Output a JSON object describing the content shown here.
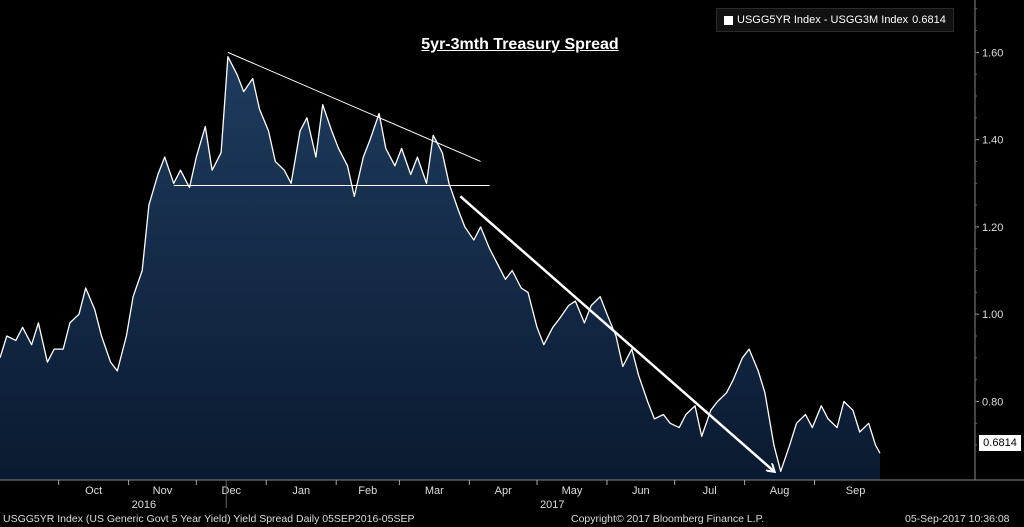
{
  "chart_data": {
    "type": "area",
    "title": "5yr-3mth Treasury Spread",
    "legend": {
      "position": "top-right",
      "series_label": "USGG5YR Index - USGG3M Index",
      "last_value": "0.6814"
    },
    "ylim": [
      0.62,
      1.72
    ],
    "yticks": [
      0.8,
      1.0,
      1.2,
      1.4,
      1.6
    ],
    "ytick_labels": [
      "0.80",
      "1.00",
      "1.20",
      "1.40",
      "1.60"
    ],
    "last_value_label": "0.6814",
    "x_start": "2016-09-05",
    "x_end": "2017-09-30",
    "month_ticks": [
      {
        "label": "Oct",
        "date": "2016-10-01"
      },
      {
        "label": "Nov",
        "date": "2016-11-01"
      },
      {
        "label": "Dec",
        "date": "2016-12-01"
      },
      {
        "label": "Jan",
        "date": "2017-01-01"
      },
      {
        "label": "Feb",
        "date": "2017-02-01"
      },
      {
        "label": "Mar",
        "date": "2017-03-01"
      },
      {
        "label": "Apr",
        "date": "2017-04-01"
      },
      {
        "label": "May",
        "date": "2017-05-01"
      },
      {
        "label": "Jun",
        "date": "2017-06-01"
      },
      {
        "label": "Jul",
        "date": "2017-07-01"
      },
      {
        "label": "Aug",
        "date": "2017-08-01"
      },
      {
        "label": "Sep",
        "date": "2017-09-01"
      }
    ],
    "year_labels": [
      {
        "label": "2016",
        "date": "2016-11-01"
      },
      {
        "label": "2017",
        "date": "2017-05-01"
      }
    ],
    "grid": false,
    "series": [
      {
        "name": "USGG5YR Index - USGG3M Index",
        "points": [
          [
            "2016-09-05",
            0.9
          ],
          [
            "2016-09-08",
            0.95
          ],
          [
            "2016-09-12",
            0.94
          ],
          [
            "2016-09-15",
            0.97
          ],
          [
            "2016-09-19",
            0.93
          ],
          [
            "2016-09-22",
            0.98
          ],
          [
            "2016-09-26",
            0.89
          ],
          [
            "2016-09-29",
            0.92
          ],
          [
            "2016-10-03",
            0.92
          ],
          [
            "2016-10-06",
            0.98
          ],
          [
            "2016-10-10",
            1.0
          ],
          [
            "2016-10-13",
            1.06
          ],
          [
            "2016-10-17",
            1.01
          ],
          [
            "2016-10-20",
            0.95
          ],
          [
            "2016-10-24",
            0.89
          ],
          [
            "2016-10-27",
            0.87
          ],
          [
            "2016-10-31",
            0.95
          ],
          [
            "2016-11-03",
            1.04
          ],
          [
            "2016-11-07",
            1.1
          ],
          [
            "2016-11-10",
            1.25
          ],
          [
            "2016-11-14",
            1.32
          ],
          [
            "2016-11-17",
            1.36
          ],
          [
            "2016-11-21",
            1.3
          ],
          [
            "2016-11-24",
            1.33
          ],
          [
            "2016-11-28",
            1.29
          ],
          [
            "2016-12-01",
            1.36
          ],
          [
            "2016-12-05",
            1.43
          ],
          [
            "2016-12-08",
            1.33
          ],
          [
            "2016-12-12",
            1.37
          ],
          [
            "2016-12-15",
            1.59
          ],
          [
            "2016-12-19",
            1.55
          ],
          [
            "2016-12-22",
            1.51
          ],
          [
            "2016-12-26",
            1.54
          ],
          [
            "2016-12-29",
            1.47
          ],
          [
            "2017-01-02",
            1.42
          ],
          [
            "2017-01-05",
            1.35
          ],
          [
            "2017-01-09",
            1.33
          ],
          [
            "2017-01-12",
            1.3
          ],
          [
            "2017-01-16",
            1.42
          ],
          [
            "2017-01-19",
            1.45
          ],
          [
            "2017-01-23",
            1.36
          ],
          [
            "2017-01-26",
            1.48
          ],
          [
            "2017-01-30",
            1.42
          ],
          [
            "2017-02-02",
            1.38
          ],
          [
            "2017-02-06",
            1.34
          ],
          [
            "2017-02-09",
            1.27
          ],
          [
            "2017-02-13",
            1.36
          ],
          [
            "2017-02-16",
            1.4
          ],
          [
            "2017-02-20",
            1.46
          ],
          [
            "2017-02-23",
            1.38
          ],
          [
            "2017-02-27",
            1.34
          ],
          [
            "2017-03-02",
            1.38
          ],
          [
            "2017-03-06",
            1.32
          ],
          [
            "2017-03-09",
            1.36
          ],
          [
            "2017-03-13",
            1.3
          ],
          [
            "2017-03-16",
            1.41
          ],
          [
            "2017-03-20",
            1.37
          ],
          [
            "2017-03-23",
            1.3
          ],
          [
            "2017-03-27",
            1.24
          ],
          [
            "2017-03-30",
            1.2
          ],
          [
            "2017-04-03",
            1.17
          ],
          [
            "2017-04-06",
            1.2
          ],
          [
            "2017-04-10",
            1.15
          ],
          [
            "2017-04-13",
            1.12
          ],
          [
            "2017-04-17",
            1.08
          ],
          [
            "2017-04-20",
            1.1
          ],
          [
            "2017-04-24",
            1.06
          ],
          [
            "2017-04-27",
            1.05
          ],
          [
            "2017-05-01",
            0.97
          ],
          [
            "2017-05-04",
            0.93
          ],
          [
            "2017-05-08",
            0.97
          ],
          [
            "2017-05-11",
            0.99
          ],
          [
            "2017-05-15",
            1.02
          ],
          [
            "2017-05-18",
            1.03
          ],
          [
            "2017-05-22",
            0.98
          ],
          [
            "2017-05-25",
            1.02
          ],
          [
            "2017-05-29",
            1.04
          ],
          [
            "2017-06-01",
            1.0
          ],
          [
            "2017-06-05",
            0.95
          ],
          [
            "2017-06-08",
            0.88
          ],
          [
            "2017-06-12",
            0.92
          ],
          [
            "2017-06-15",
            0.86
          ],
          [
            "2017-06-19",
            0.8
          ],
          [
            "2017-06-22",
            0.76
          ],
          [
            "2017-06-26",
            0.77
          ],
          [
            "2017-06-29",
            0.75
          ],
          [
            "2017-07-03",
            0.74
          ],
          [
            "2017-07-06",
            0.77
          ],
          [
            "2017-07-10",
            0.79
          ],
          [
            "2017-07-13",
            0.72
          ],
          [
            "2017-07-17",
            0.78
          ],
          [
            "2017-07-20",
            0.8
          ],
          [
            "2017-07-24",
            0.82
          ],
          [
            "2017-07-27",
            0.85
          ],
          [
            "2017-07-31",
            0.9
          ],
          [
            "2017-08-03",
            0.92
          ],
          [
            "2017-08-07",
            0.87
          ],
          [
            "2017-08-10",
            0.82
          ],
          [
            "2017-08-14",
            0.7
          ],
          [
            "2017-08-17",
            0.64
          ],
          [
            "2017-08-21",
            0.7
          ],
          [
            "2017-08-24",
            0.75
          ],
          [
            "2017-08-28",
            0.77
          ],
          [
            "2017-08-31",
            0.74
          ],
          [
            "2017-09-04",
            0.79
          ],
          [
            "2017-09-07",
            0.76
          ],
          [
            "2017-09-11",
            0.74
          ],
          [
            "2017-09-14",
            0.8
          ],
          [
            "2017-09-18",
            0.78
          ],
          [
            "2017-09-21",
            0.73
          ],
          [
            "2017-09-25",
            0.75
          ],
          [
            "2017-09-28",
            0.7
          ],
          [
            "2017-09-30",
            0.6814
          ]
        ]
      }
    ],
    "annotations": [
      {
        "type": "trendline",
        "from": [
          "2016-12-15",
          1.6
        ],
        "to": [
          "2017-04-06",
          1.35
        ]
      },
      {
        "type": "trendline",
        "from": [
          "2016-11-21",
          1.295
        ],
        "to": [
          "2017-04-10",
          1.295
        ]
      },
      {
        "type": "arrow",
        "from": [
          "2017-03-28",
          1.27
        ],
        "to": [
          "2017-08-14",
          0.64
        ]
      }
    ]
  },
  "footer": {
    "left": "USGG5YR Index (US Generic Govt 5 Year Yield) Yield Spread  Daily 05SEP2016-05SEP",
    "center": "Copyright© 2017 Bloomberg Finance L.P.",
    "right": "05-Sep-2017 10:36:08"
  },
  "colors": {
    "background": "#000000",
    "area_fill_top": "#1e3b5e",
    "area_fill_bottom": "#0a1a30",
    "line": "#ffffff",
    "annotation": "#ffffff"
  }
}
